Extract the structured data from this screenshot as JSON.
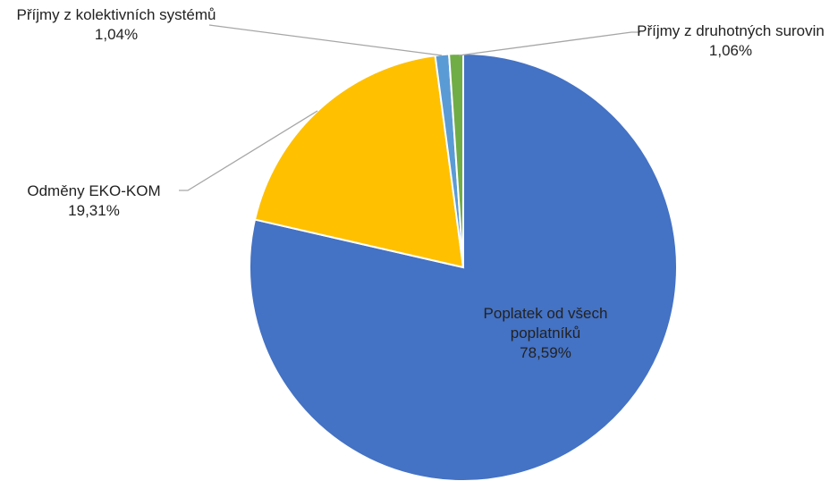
{
  "chart_data": {
    "type": "pie",
    "categories": [
      "Poplatek od všech poplatníků",
      "Odměny EKO-KOM",
      "Příjmy z kolektivních systémů",
      "Příjmy z druhotných surovin"
    ],
    "values": [
      78.59,
      19.31,
      1.04,
      1.06
    ],
    "value_labels": [
      "78,59%",
      "19,31%",
      "1,04%",
      "1,06%"
    ],
    "colors": [
      "#4472c4",
      "#ffc000",
      "#5b9bd5",
      "#70ad47"
    ]
  }
}
